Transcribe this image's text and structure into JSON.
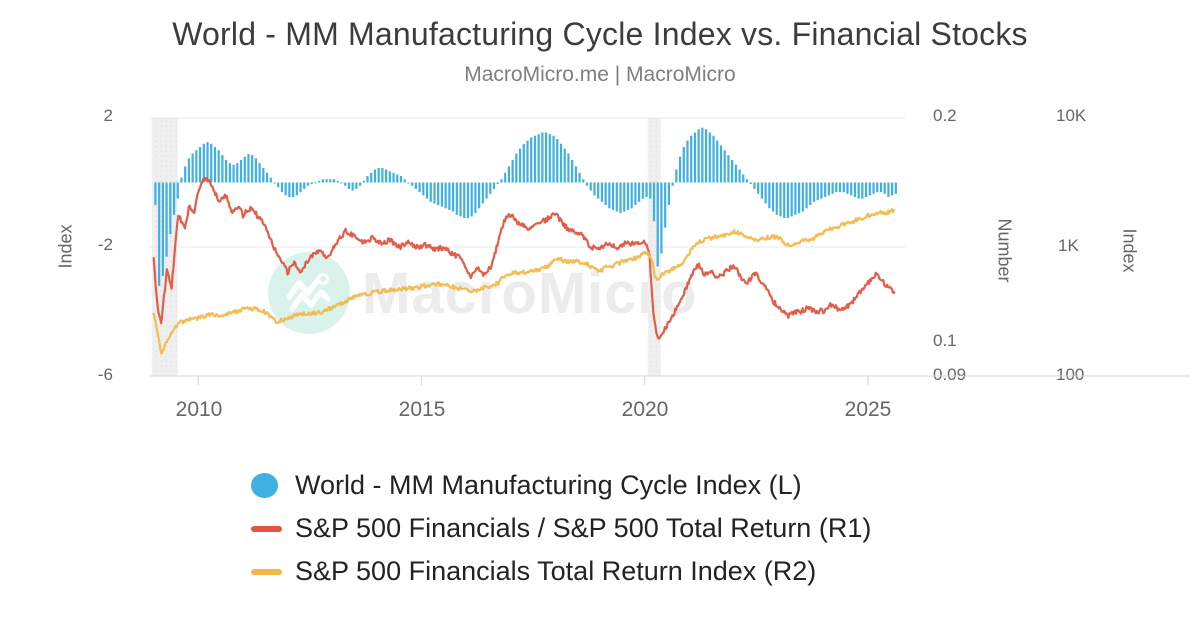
{
  "header": {
    "title": "World - MM Manufacturing Cycle Index vs. Financial Stocks",
    "subtitle": "MacroMicro.me | MacroMicro"
  },
  "watermark": {
    "text": "MacroMicro"
  },
  "axes": {
    "left": {
      "title": "Index",
      "ticks": [
        "2",
        "-2",
        "-6"
      ]
    },
    "r1": {
      "title": "Number",
      "ticks": [
        "0.2",
        "0.1",
        "0.09"
      ]
    },
    "r2": {
      "title": "Index",
      "ticks": [
        "10K",
        "1K",
        "100"
      ]
    },
    "x": {
      "ticks": [
        "2010",
        "2015",
        "2020",
        "2025"
      ]
    }
  },
  "legend": {
    "items": [
      {
        "label": "World - MM Manufacturing Cycle Index (L)",
        "marker": "circle",
        "color": "#3fb0e0"
      },
      {
        "label": "S&P 500 Financials / S&P 500 Total Return (R1)",
        "marker": "dash",
        "color": "#e2543f"
      },
      {
        "label": "S&P 500 Financials Total Return Index (R2)",
        "marker": "dash",
        "color": "#f2b84b"
      }
    ]
  },
  "colors": {
    "bars": "#3fb0e0",
    "line_r1": "#e2543f",
    "line_r2": "#f2b84b",
    "grid": "#e8e8e8",
    "axis_line": "#d4d4d4",
    "band": "#efefef",
    "tick_text": "#666666",
    "title_text": "#3c3c3c"
  },
  "chart_data": {
    "type": "combo",
    "title": "World - MM Manufacturing Cycle Index vs. Financial Stocks",
    "x_domain": [
      2008.92,
      2025.83
    ],
    "x_ticks": [
      2010,
      2015,
      2020,
      2025
    ],
    "axis_ranges": {
      "left_linear": [
        -6,
        2
      ],
      "r1_log": [
        0.09,
        0.2
      ],
      "r2_log": [
        100,
        10000
      ]
    },
    "grid_values_left": [
      2,
      -2,
      -6
    ],
    "recession_bands": [
      [
        2008.96,
        2009.54
      ],
      [
        2020.07,
        2020.36
      ]
    ],
    "series": [
      {
        "name": "World - MM Manufacturing Cycle Index (L)",
        "type": "column",
        "axis": "L",
        "start": 2009.0,
        "step_months": 1,
        "values": [
          -0.7,
          -3.2,
          -2.9,
          -2.3,
          -1.6,
          -1.0,
          -0.5,
          0.15,
          0.5,
          0.75,
          0.9,
          1.0,
          1.1,
          1.2,
          1.25,
          1.2,
          1.1,
          1.0,
          0.85,
          0.7,
          0.6,
          0.55,
          0.6,
          0.7,
          0.8,
          0.88,
          0.85,
          0.75,
          0.6,
          0.45,
          0.3,
          0.15,
          0.0,
          -0.15,
          -0.3,
          -0.4,
          -0.45,
          -0.45,
          -0.4,
          -0.3,
          -0.2,
          -0.1,
          -0.05,
          0.0,
          0.05,
          0.1,
          0.1,
          0.1,
          0.1,
          0.05,
          0.0,
          -0.1,
          -0.2,
          -0.25,
          -0.2,
          -0.1,
          0.05,
          0.2,
          0.3,
          0.4,
          0.45,
          0.45,
          0.4,
          0.35,
          0.3,
          0.25,
          0.2,
          0.1,
          0.0,
          -0.1,
          -0.2,
          -0.3,
          -0.4,
          -0.5,
          -0.6,
          -0.65,
          -0.7,
          -0.75,
          -0.8,
          -0.85,
          -0.9,
          -1.0,
          -1.05,
          -1.1,
          -1.1,
          -1.05,
          -0.95,
          -0.8,
          -0.65,
          -0.5,
          -0.35,
          -0.2,
          -0.05,
          0.1,
          0.3,
          0.5,
          0.7,
          0.9,
          1.05,
          1.2,
          1.3,
          1.4,
          1.45,
          1.5,
          1.55,
          1.55,
          1.5,
          1.45,
          1.35,
          1.2,
          1.05,
          0.9,
          0.7,
          0.5,
          0.3,
          0.1,
          -0.1,
          -0.25,
          -0.4,
          -0.5,
          -0.6,
          -0.7,
          -0.8,
          -0.85,
          -0.9,
          -0.95,
          -0.9,
          -0.85,
          -0.8,
          -0.7,
          -0.6,
          -0.5,
          -0.45,
          -0.5,
          -1.2,
          -2.6,
          -2.2,
          -1.4,
          -0.7,
          -0.1,
          0.4,
          0.8,
          1.1,
          1.3,
          1.45,
          1.55,
          1.65,
          1.7,
          1.65,
          1.55,
          1.45,
          1.3,
          1.15,
          1.0,
          0.85,
          0.7,
          0.55,
          0.4,
          0.25,
          0.1,
          -0.05,
          -0.2,
          -0.35,
          -0.5,
          -0.65,
          -0.8,
          -0.9,
          -1.0,
          -1.05,
          -1.1,
          -1.1,
          -1.05,
          -1.0,
          -0.95,
          -0.9,
          -0.8,
          -0.7,
          -0.6,
          -0.55,
          -0.5,
          -0.45,
          -0.4,
          -0.35,
          -0.3,
          -0.3,
          -0.3,
          -0.35,
          -0.4,
          -0.45,
          -0.5,
          -0.5,
          -0.45,
          -0.4,
          -0.35,
          -0.3,
          -0.3,
          -0.35,
          -0.45,
          -0.4,
          -0.35
        ]
      },
      {
        "name": "S&P 500 Financials / S&P 500 Total Return (R1)",
        "type": "line",
        "axis": "R1",
        "points": [
          [
            2009.0,
            0.129
          ],
          [
            2009.1,
            0.11
          ],
          [
            2009.17,
            0.106
          ],
          [
            2009.3,
            0.125
          ],
          [
            2009.4,
            0.118
          ],
          [
            2009.55,
            0.148
          ],
          [
            2009.7,
            0.143
          ],
          [
            2009.8,
            0.152
          ],
          [
            2009.9,
            0.148
          ],
          [
            2010.0,
            0.16
          ],
          [
            2010.15,
            0.166
          ],
          [
            2010.3,
            0.163
          ],
          [
            2010.45,
            0.155
          ],
          [
            2010.6,
            0.158
          ],
          [
            2010.75,
            0.15
          ],
          [
            2010.9,
            0.152
          ],
          [
            2011.0,
            0.148
          ],
          [
            2011.2,
            0.152
          ],
          [
            2011.35,
            0.147
          ],
          [
            2011.5,
            0.144
          ],
          [
            2011.65,
            0.136
          ],
          [
            2011.8,
            0.13
          ],
          [
            2012.0,
            0.124
          ],
          [
            2012.15,
            0.128
          ],
          [
            2012.3,
            0.124
          ],
          [
            2012.5,
            0.13
          ],
          [
            2012.7,
            0.133
          ],
          [
            2012.9,
            0.13
          ],
          [
            2013.1,
            0.136
          ],
          [
            2013.3,
            0.141
          ],
          [
            2013.5,
            0.139
          ],
          [
            2013.7,
            0.136
          ],
          [
            2013.9,
            0.138
          ],
          [
            2014.1,
            0.136
          ],
          [
            2014.3,
            0.137
          ],
          [
            2014.5,
            0.134
          ],
          [
            2014.7,
            0.136
          ],
          [
            2014.9,
            0.134
          ],
          [
            2015.1,
            0.135
          ],
          [
            2015.3,
            0.133
          ],
          [
            2015.5,
            0.134
          ],
          [
            2015.7,
            0.131
          ],
          [
            2015.9,
            0.13
          ],
          [
            2016.1,
            0.122
          ],
          [
            2016.25,
            0.126
          ],
          [
            2016.4,
            0.123
          ],
          [
            2016.55,
            0.126
          ],
          [
            2016.7,
            0.135
          ],
          [
            2016.85,
            0.146
          ],
          [
            2017.0,
            0.148
          ],
          [
            2017.2,
            0.144
          ],
          [
            2017.4,
            0.142
          ],
          [
            2017.6,
            0.145
          ],
          [
            2017.8,
            0.146
          ],
          [
            2018.0,
            0.149
          ],
          [
            2018.2,
            0.143
          ],
          [
            2018.4,
            0.141
          ],
          [
            2018.6,
            0.139
          ],
          [
            2018.8,
            0.134
          ],
          [
            2019.0,
            0.133
          ],
          [
            2019.2,
            0.136
          ],
          [
            2019.4,
            0.134
          ],
          [
            2019.6,
            0.136
          ],
          [
            2019.8,
            0.135
          ],
          [
            2020.0,
            0.137
          ],
          [
            2020.1,
            0.133
          ],
          [
            2020.2,
            0.108
          ],
          [
            2020.3,
            0.101
          ],
          [
            2020.45,
            0.104
          ],
          [
            2020.6,
            0.108
          ],
          [
            2020.75,
            0.112
          ],
          [
            2020.9,
            0.117
          ],
          [
            2021.05,
            0.123
          ],
          [
            2021.2,
            0.127
          ],
          [
            2021.35,
            0.123
          ],
          [
            2021.5,
            0.124
          ],
          [
            2021.65,
            0.122
          ],
          [
            2021.8,
            0.124
          ],
          [
            2022.0,
            0.127
          ],
          [
            2022.15,
            0.122
          ],
          [
            2022.3,
            0.12
          ],
          [
            2022.45,
            0.124
          ],
          [
            2022.6,
            0.121
          ],
          [
            2022.75,
            0.117
          ],
          [
            2022.9,
            0.113
          ],
          [
            2023.05,
            0.111
          ],
          [
            2023.2,
            0.108
          ],
          [
            2023.35,
            0.11
          ],
          [
            2023.5,
            0.11
          ],
          [
            2023.65,
            0.111
          ],
          [
            2023.8,
            0.11
          ],
          [
            2024.0,
            0.11
          ],
          [
            2024.15,
            0.112
          ],
          [
            2024.3,
            0.111
          ],
          [
            2024.45,
            0.111
          ],
          [
            2024.6,
            0.112
          ],
          [
            2024.75,
            0.115
          ],
          [
            2024.9,
            0.118
          ],
          [
            2025.05,
            0.121
          ],
          [
            2025.2,
            0.124
          ],
          [
            2025.35,
            0.12
          ],
          [
            2025.5,
            0.118
          ],
          [
            2025.6,
            0.117
          ]
        ]
      },
      {
        "name": "S&P 500 Financials Total Return Index (R2)",
        "type": "line",
        "axis": "R2",
        "points": [
          [
            2009.0,
            310
          ],
          [
            2009.1,
            200
          ],
          [
            2009.17,
            150
          ],
          [
            2009.3,
            185
          ],
          [
            2009.45,
            230
          ],
          [
            2009.6,
            260
          ],
          [
            2009.75,
            270
          ],
          [
            2009.9,
            275
          ],
          [
            2010.05,
            285
          ],
          [
            2010.2,
            295
          ],
          [
            2010.35,
            300
          ],
          [
            2010.5,
            295
          ],
          [
            2010.65,
            305
          ],
          [
            2010.8,
            310
          ],
          [
            2011.0,
            330
          ],
          [
            2011.15,
            335
          ],
          [
            2011.3,
            330
          ],
          [
            2011.45,
            320
          ],
          [
            2011.6,
            290
          ],
          [
            2011.75,
            265
          ],
          [
            2011.9,
            270
          ],
          [
            2012.05,
            285
          ],
          [
            2012.2,
            300
          ],
          [
            2012.35,
            305
          ],
          [
            2012.5,
            300
          ],
          [
            2012.65,
            310
          ],
          [
            2012.8,
            315
          ],
          [
            2013.0,
            340
          ],
          [
            2013.2,
            365
          ],
          [
            2013.4,
            395
          ],
          [
            2013.6,
            420
          ],
          [
            2013.8,
            435
          ],
          [
            2014.0,
            450
          ],
          [
            2014.2,
            460
          ],
          [
            2014.4,
            465
          ],
          [
            2014.6,
            475
          ],
          [
            2014.8,
            480
          ],
          [
            2015.0,
            495
          ],
          [
            2015.2,
            505
          ],
          [
            2015.4,
            515
          ],
          [
            2015.6,
            505
          ],
          [
            2015.8,
            480
          ],
          [
            2016.0,
            470
          ],
          [
            2016.1,
            445
          ],
          [
            2016.25,
            465
          ],
          [
            2016.4,
            480
          ],
          [
            2016.55,
            495
          ],
          [
            2016.7,
            520
          ],
          [
            2016.85,
            590
          ],
          [
            2017.0,
            625
          ],
          [
            2017.2,
            635
          ],
          [
            2017.4,
            645
          ],
          [
            2017.6,
            665
          ],
          [
            2017.8,
            700
          ],
          [
            2018.0,
            790
          ],
          [
            2018.1,
            810
          ],
          [
            2018.25,
            770
          ],
          [
            2018.4,
            780
          ],
          [
            2018.55,
            765
          ],
          [
            2018.7,
            740
          ],
          [
            2018.85,
            680
          ],
          [
            2019.0,
            650
          ],
          [
            2019.15,
            700
          ],
          [
            2019.3,
            720
          ],
          [
            2019.45,
            760
          ],
          [
            2019.6,
            790
          ],
          [
            2019.75,
            810
          ],
          [
            2019.9,
            860
          ],
          [
            2020.05,
            910
          ],
          [
            2020.15,
            820
          ],
          [
            2020.25,
            550
          ],
          [
            2020.35,
            600
          ],
          [
            2020.5,
            640
          ],
          [
            2020.65,
            680
          ],
          [
            2020.8,
            720
          ],
          [
            2020.95,
            850
          ],
          [
            2021.1,
            1000
          ],
          [
            2021.25,
            1100
          ],
          [
            2021.4,
            1160
          ],
          [
            2021.55,
            1190
          ],
          [
            2021.7,
            1220
          ],
          [
            2021.85,
            1260
          ],
          [
            2022.0,
            1310
          ],
          [
            2022.1,
            1280
          ],
          [
            2022.25,
            1220
          ],
          [
            2022.4,
            1160
          ],
          [
            2022.55,
            1130
          ],
          [
            2022.7,
            1180
          ],
          [
            2022.85,
            1200
          ],
          [
            2023.0,
            1190
          ],
          [
            2023.15,
            1060
          ],
          [
            2023.3,
            1040
          ],
          [
            2023.45,
            1090
          ],
          [
            2023.6,
            1130
          ],
          [
            2023.75,
            1160
          ],
          [
            2023.9,
            1230
          ],
          [
            2024.05,
            1330
          ],
          [
            2024.2,
            1380
          ],
          [
            2024.35,
            1440
          ],
          [
            2024.5,
            1520
          ],
          [
            2024.65,
            1580
          ],
          [
            2024.8,
            1640
          ],
          [
            2024.95,
            1720
          ],
          [
            2025.1,
            1790
          ],
          [
            2025.25,
            1850
          ],
          [
            2025.4,
            1820
          ],
          [
            2025.5,
            1880
          ],
          [
            2025.6,
            1930
          ]
        ]
      }
    ]
  }
}
